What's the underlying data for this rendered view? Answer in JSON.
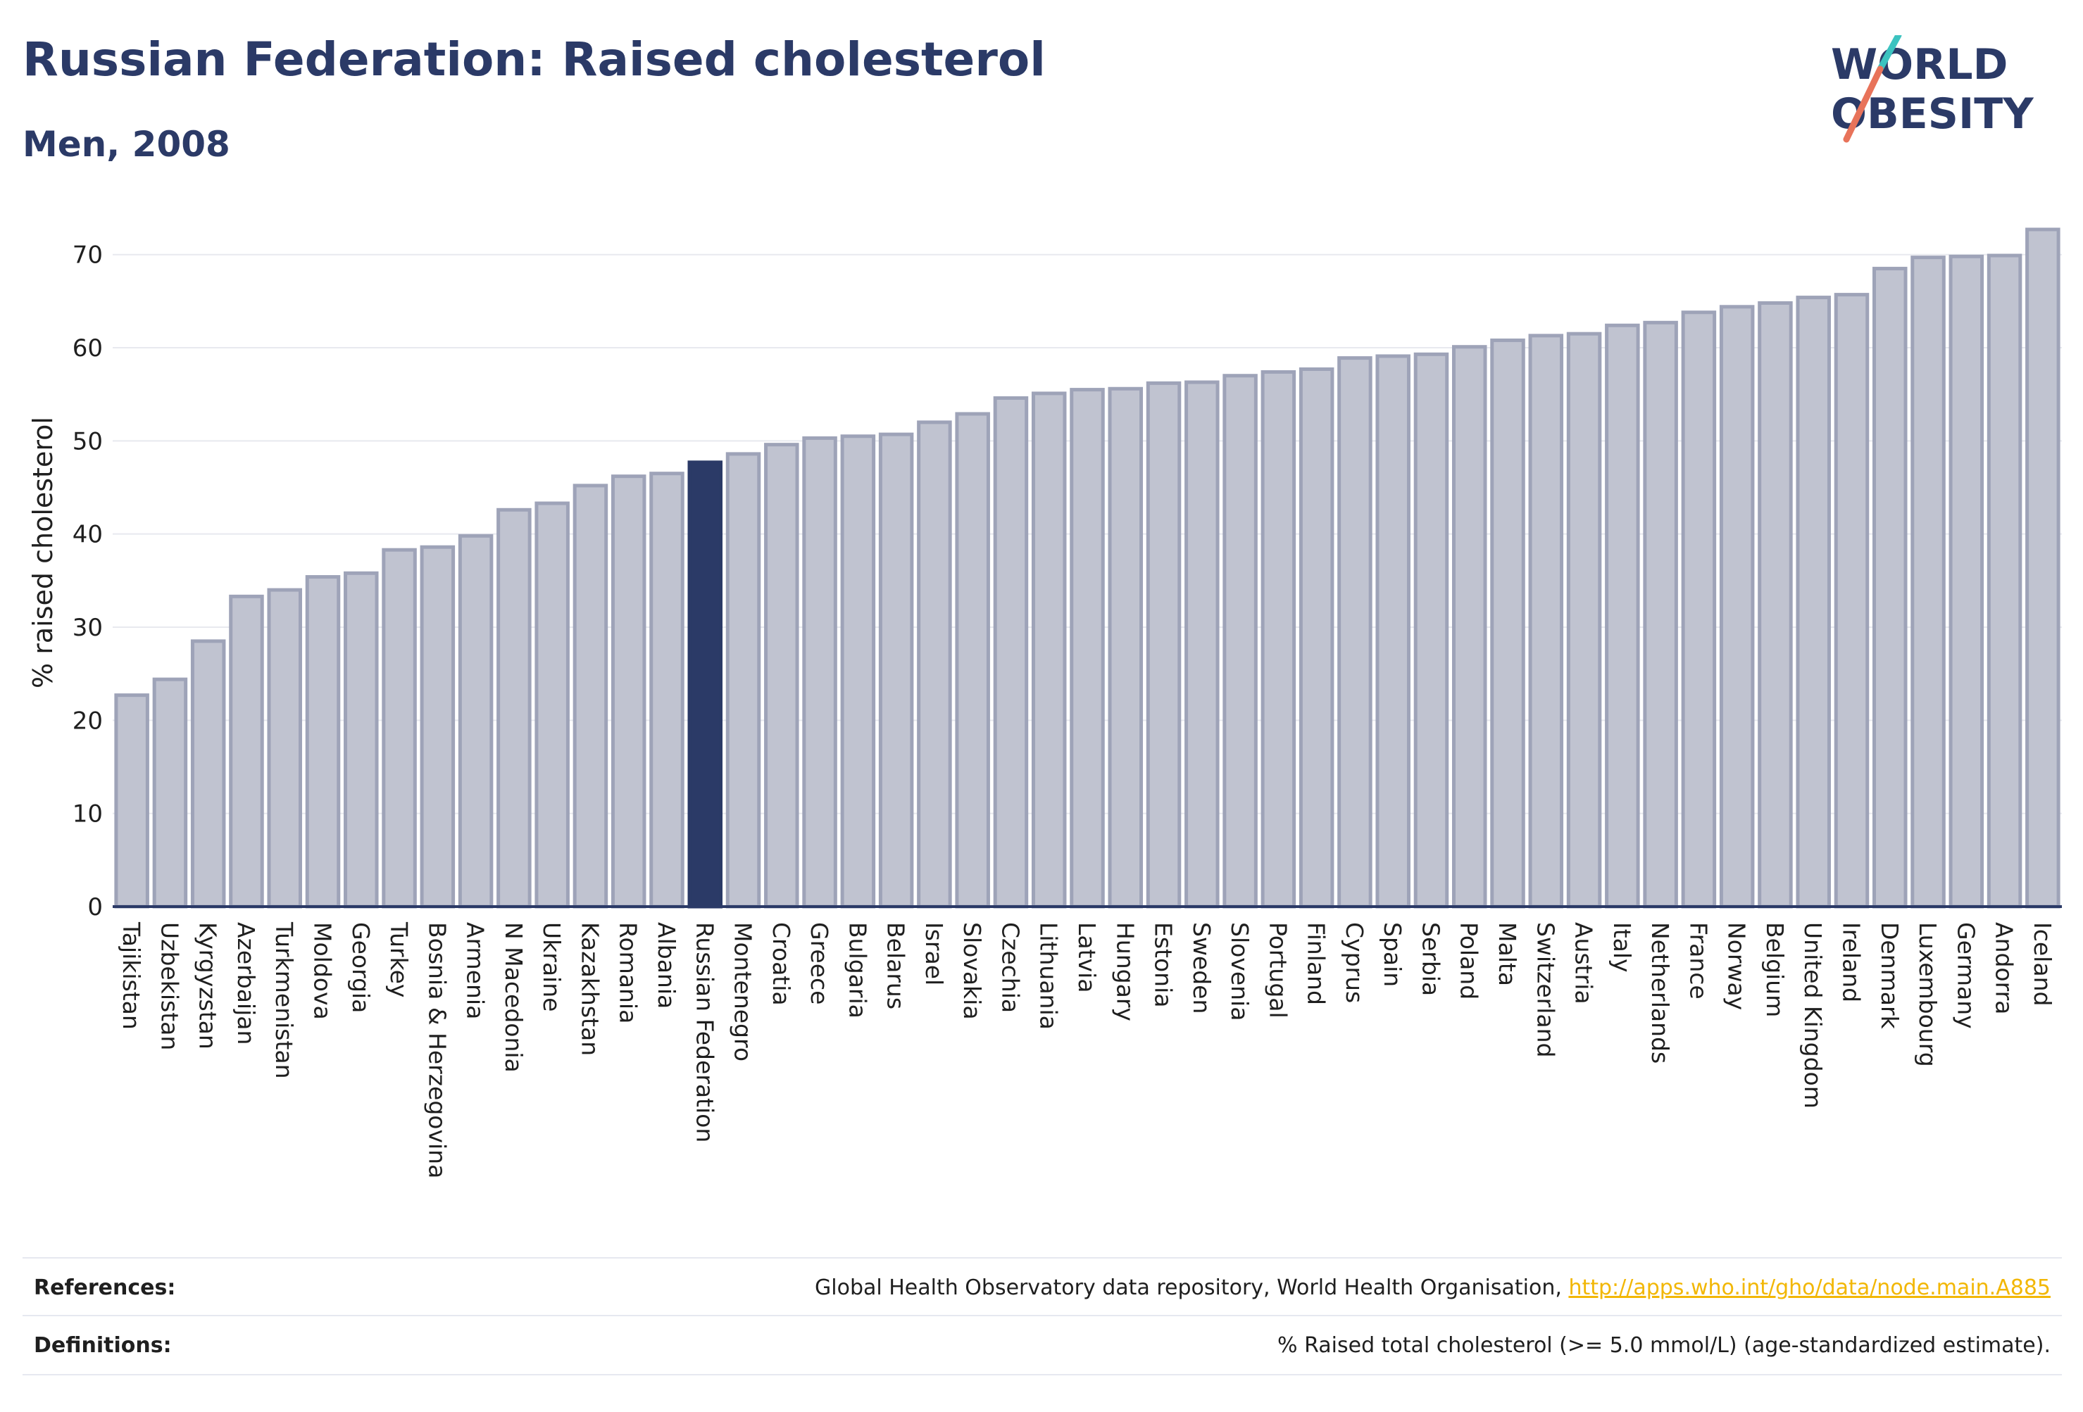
{
  "header": {
    "title": "Russian Federation: Raised cholesterol",
    "subtitle": "Men, 2008"
  },
  "logo": {
    "line1": "WORLD",
    "line2": "OBESITY",
    "brand_color": "#2b3a67",
    "accent_colors": [
      "#3cc3c0",
      "#e8735a"
    ]
  },
  "chart_data": {
    "type": "bar",
    "ylabel": "% raised cholesterol",
    "xlabel": "",
    "ylim": [
      0,
      73
    ],
    "yticks": [
      0,
      10,
      20,
      30,
      40,
      50,
      60,
      70
    ],
    "grid": true,
    "highlight": "Russian Federation",
    "colors": {
      "bar": "#c0c3d0",
      "bar_edge": "#9ea3b8",
      "highlight": "#2b3a67"
    },
    "categories": [
      "Tajikistan",
      "Uzbekistan",
      "Kyrgyzstan",
      "Azerbaijan",
      "Turkmenistan",
      "Moldova",
      "Georgia",
      "Turkey",
      "Bosnia & Herzegovina",
      "Armenia",
      "N Macedonia",
      "Ukraine",
      "Kazakhstan",
      "Romania",
      "Albania",
      "Russian Federation",
      "Montenegro",
      "Croatia",
      "Greece",
      "Bulgaria",
      "Belarus",
      "Israel",
      "Slovakia",
      "Czechia",
      "Lithuania",
      "Latvia",
      "Hungary",
      "Estonia",
      "Sweden",
      "Slovenia",
      "Portugal",
      "Finland",
      "Cyprus",
      "Spain",
      "Serbia",
      "Poland",
      "Malta",
      "Switzerland",
      "Austria",
      "Italy",
      "Netherlands",
      "France",
      "Norway",
      "Belgium",
      "United Kingdom",
      "Ireland",
      "Denmark",
      "Luxembourg",
      "Germany",
      "Andorra",
      "Iceland"
    ],
    "values": [
      22.7,
      24.4,
      28.5,
      33.3,
      34.0,
      35.4,
      35.8,
      38.3,
      38.6,
      39.8,
      42.6,
      43.3,
      45.2,
      46.2,
      46.5,
      47.7,
      48.6,
      49.6,
      50.3,
      50.5,
      50.7,
      52.0,
      52.9,
      54.6,
      55.1,
      55.5,
      55.6,
      56.2,
      56.3,
      57.0,
      57.4,
      57.7,
      58.9,
      59.1,
      59.3,
      60.1,
      60.8,
      61.3,
      61.5,
      62.4,
      62.7,
      63.8,
      64.4,
      64.8,
      65.4,
      65.7,
      68.5,
      69.7,
      69.8,
      69.9,
      72.7
    ]
  },
  "footer": {
    "references_label": "References:",
    "references_text": "Global Health Observatory data repository, World Health Organisation, ",
    "references_link": "http://apps.who.int/gho/data/node.main.A885",
    "definitions_label": "Definitions:",
    "definitions_text": "% Raised total cholesterol (>= 5.0 mmol/L) (age-standardized estimate)."
  }
}
